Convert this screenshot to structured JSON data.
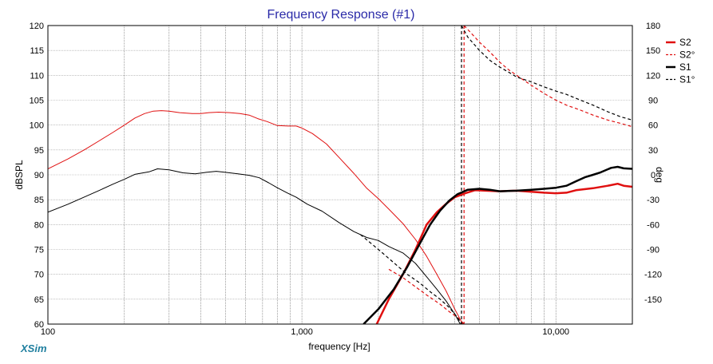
{
  "app": {
    "brand": "XSim"
  },
  "chart_data": {
    "type": "line",
    "title": "Frequency Response (#1)",
    "xlabel": "frequency [Hz]",
    "ylabel": "dBSPL",
    "y2label": "deg",
    "x_scale": "log",
    "xlim": [
      100,
      20000
    ],
    "ylim": [
      60,
      120
    ],
    "y2lim": [
      -180,
      180
    ],
    "grid": true,
    "legend_position": "top-right",
    "x_ticks": [
      {
        "value": 100,
        "label": "100"
      },
      {
        "value": 1000,
        "label": "1,000"
      },
      {
        "value": 10000,
        "label": "10,000"
      }
    ],
    "y_ticks": [
      {
        "value": 120,
        "label": "120"
      },
      {
        "value": 115,
        "label": "115"
      },
      {
        "value": 110,
        "label": "110"
      },
      {
        "value": 105,
        "label": "105"
      },
      {
        "value": 100,
        "label": "100"
      },
      {
        "value": 95,
        "label": "95"
      },
      {
        "value": 90,
        "label": "90"
      },
      {
        "value": 85,
        "label": "85"
      },
      {
        "value": 80,
        "label": "80"
      },
      {
        "value": 75,
        "label": "75"
      },
      {
        "value": 70,
        "label": "70"
      },
      {
        "value": 65,
        "label": "65"
      },
      {
        "value": 60,
        "label": "60"
      }
    ],
    "y2_ticks": [
      {
        "value": 180,
        "label": "180"
      },
      {
        "value": 150,
        "label": "150"
      },
      {
        "value": 120,
        "label": "120"
      },
      {
        "value": 90,
        "label": "90"
      },
      {
        "value": 60,
        "label": "60"
      },
      {
        "value": 30,
        "label": "30"
      },
      {
        "value": 0,
        "label": "0"
      },
      {
        "value": -30,
        "label": "-30"
      },
      {
        "value": -60,
        "label": "-60"
      },
      {
        "value": -90,
        "label": "-90"
      },
      {
        "value": -120,
        "label": "-120"
      },
      {
        "value": -150,
        "label": "-150"
      }
    ],
    "series": [
      {
        "name": "S2",
        "color": "#e01010",
        "style": "solid",
        "width": 2.5,
        "axis": "left",
        "points": [
          [
            1970,
            60
          ],
          [
            2200,
            65
          ],
          [
            2500,
            70
          ],
          [
            2800,
            75
          ],
          [
            3100,
            80
          ],
          [
            3400,
            82.5
          ],
          [
            3700,
            84.2
          ],
          [
            4000,
            85.5
          ],
          [
            4400,
            86.3
          ],
          [
            4800,
            86.9
          ],
          [
            5300,
            86.8
          ],
          [
            6000,
            86.7
          ],
          [
            7000,
            86.8
          ],
          [
            8000,
            86.6
          ],
          [
            9000,
            86.4
          ],
          [
            10000,
            86.3
          ],
          [
            11000,
            86.4
          ],
          [
            12000,
            86.9
          ],
          [
            14000,
            87.3
          ],
          [
            16000,
            87.8
          ],
          [
            17500,
            88.2
          ],
          [
            18500,
            87.8
          ],
          [
            20000,
            87.6
          ]
        ]
      },
      {
        "name": "S2°",
        "color": "#e01010",
        "style": "dashed",
        "width": 1.2,
        "axis": "right",
        "points": [
          [
            2200,
            -114
          ],
          [
            2500,
            -124
          ],
          [
            2800,
            -135
          ],
          [
            3100,
            -145
          ],
          [
            3500,
            -156
          ],
          [
            3800,
            -165
          ],
          [
            4100,
            -172
          ],
          [
            4350,
            -180
          ],
          [
            4350,
            180
          ],
          [
            4600,
            172
          ],
          [
            5000,
            160
          ],
          [
            5500,
            148
          ],
          [
            6000,
            136
          ],
          [
            6500,
            127
          ],
          [
            7000,
            120
          ],
          [
            8000,
            108
          ],
          [
            9000,
            98
          ],
          [
            10000,
            90
          ],
          [
            11000,
            84
          ],
          [
            12500,
            78
          ],
          [
            14000,
            72
          ],
          [
            16000,
            66
          ],
          [
            18000,
            62
          ],
          [
            20000,
            58
          ]
        ]
      },
      {
        "name": "S1",
        "color": "#000000",
        "style": "solid",
        "width": 2.5,
        "axis": "left",
        "points": [
          [
            1750,
            60
          ],
          [
            2000,
            63
          ],
          [
            2300,
            67
          ],
          [
            2600,
            71.5
          ],
          [
            2900,
            76
          ],
          [
            3200,
            80
          ],
          [
            3500,
            82.8
          ],
          [
            3800,
            84.8
          ],
          [
            4100,
            86.1
          ],
          [
            4500,
            87
          ],
          [
            5000,
            87.2
          ],
          [
            5500,
            87
          ],
          [
            6000,
            86.7
          ],
          [
            7000,
            86.8
          ],
          [
            8000,
            87
          ],
          [
            9000,
            87.2
          ],
          [
            10000,
            87.4
          ],
          [
            11000,
            87.8
          ],
          [
            12000,
            88.7
          ],
          [
            13000,
            89.5
          ],
          [
            14000,
            90
          ],
          [
            15000,
            90.5
          ],
          [
            16500,
            91.4
          ],
          [
            17500,
            91.6
          ],
          [
            18500,
            91.3
          ],
          [
            20000,
            91.2
          ]
        ]
      },
      {
        "name": "S1°",
        "color": "#000000",
        "style": "dashed",
        "width": 1.2,
        "axis": "right",
        "points": [
          [
            1700,
            -72
          ],
          [
            2000,
            -90
          ],
          [
            2300,
            -106
          ],
          [
            2600,
            -120
          ],
          [
            2900,
            -130
          ],
          [
            3200,
            -141
          ],
          [
            3500,
            -150
          ],
          [
            3800,
            -160
          ],
          [
            4100,
            -172
          ],
          [
            4250,
            -180
          ],
          [
            4250,
            180
          ],
          [
            4500,
            166
          ],
          [
            5000,
            150
          ],
          [
            5500,
            138
          ],
          [
            6000,
            130
          ],
          [
            6500,
            124
          ],
          [
            7000,
            118
          ],
          [
            8000,
            112
          ],
          [
            9000,
            106
          ],
          [
            10000,
            101
          ],
          [
            11000,
            97
          ],
          [
            12500,
            90
          ],
          [
            14000,
            84
          ],
          [
            16000,
            76
          ],
          [
            18000,
            70
          ],
          [
            20000,
            66
          ]
        ]
      },
      {
        "name": "",
        "color": "#e01010",
        "style": "solid",
        "width": 1,
        "axis": "left",
        "points": [
          [
            100,
            91.2
          ],
          [
            120,
            93.2
          ],
          [
            140,
            95.1
          ],
          [
            160,
            96.9
          ],
          [
            180,
            98.5
          ],
          [
            200,
            100
          ],
          [
            220,
            101.4
          ],
          [
            240,
            102.3
          ],
          [
            260,
            102.8
          ],
          [
            280,
            102.9
          ],
          [
            300,
            102.8
          ],
          [
            330,
            102.5
          ],
          [
            370,
            102.3
          ],
          [
            400,
            102.3
          ],
          [
            430,
            102.5
          ],
          [
            470,
            102.6
          ],
          [
            520,
            102.5
          ],
          [
            570,
            102.3
          ],
          [
            620,
            102
          ],
          [
            670,
            101.3
          ],
          [
            730,
            100.7
          ],
          [
            800,
            99.9
          ],
          [
            880,
            99.8
          ],
          [
            950,
            99.8
          ],
          [
            1000,
            99.4
          ],
          [
            1100,
            98.3
          ],
          [
            1250,
            96.2
          ],
          [
            1400,
            93.5
          ],
          [
            1600,
            90.3
          ],
          [
            1800,
            87.3
          ],
          [
            2000,
            85.2
          ],
          [
            2200,
            83.1
          ],
          [
            2500,
            80.2
          ],
          [
            2800,
            77
          ],
          [
            3100,
            73.6
          ],
          [
            3400,
            70
          ],
          [
            3700,
            66.6
          ],
          [
            4000,
            63
          ],
          [
            4300,
            60
          ]
        ]
      },
      {
        "name": "",
        "color": "#000000",
        "style": "solid",
        "width": 1,
        "axis": "left",
        "points": [
          [
            100,
            82.5
          ],
          [
            120,
            84.1
          ],
          [
            140,
            85.6
          ],
          [
            160,
            86.9
          ],
          [
            180,
            88.1
          ],
          [
            200,
            89.1
          ],
          [
            220,
            90.1
          ],
          [
            250,
            90.6
          ],
          [
            270,
            91.2
          ],
          [
            300,
            91
          ],
          [
            340,
            90.4
          ],
          [
            380,
            90.2
          ],
          [
            420,
            90.5
          ],
          [
            460,
            90.7
          ],
          [
            500,
            90.5
          ],
          [
            560,
            90.2
          ],
          [
            620,
            89.9
          ],
          [
            680,
            89.4
          ],
          [
            740,
            88.4
          ],
          [
            800,
            87.4
          ],
          [
            880,
            86.3
          ],
          [
            950,
            85.5
          ],
          [
            1050,
            84.1
          ],
          [
            1200,
            82.7
          ],
          [
            1400,
            80.4
          ],
          [
            1600,
            78.6
          ],
          [
            1800,
            77.4
          ],
          [
            2000,
            76.8
          ],
          [
            2200,
            75.6
          ],
          [
            2500,
            74.3
          ],
          [
            2800,
            72.2
          ],
          [
            3100,
            69.5
          ],
          [
            3400,
            67
          ],
          [
            3700,
            64.6
          ],
          [
            4000,
            62
          ],
          [
            4200,
            60
          ]
        ]
      }
    ]
  }
}
